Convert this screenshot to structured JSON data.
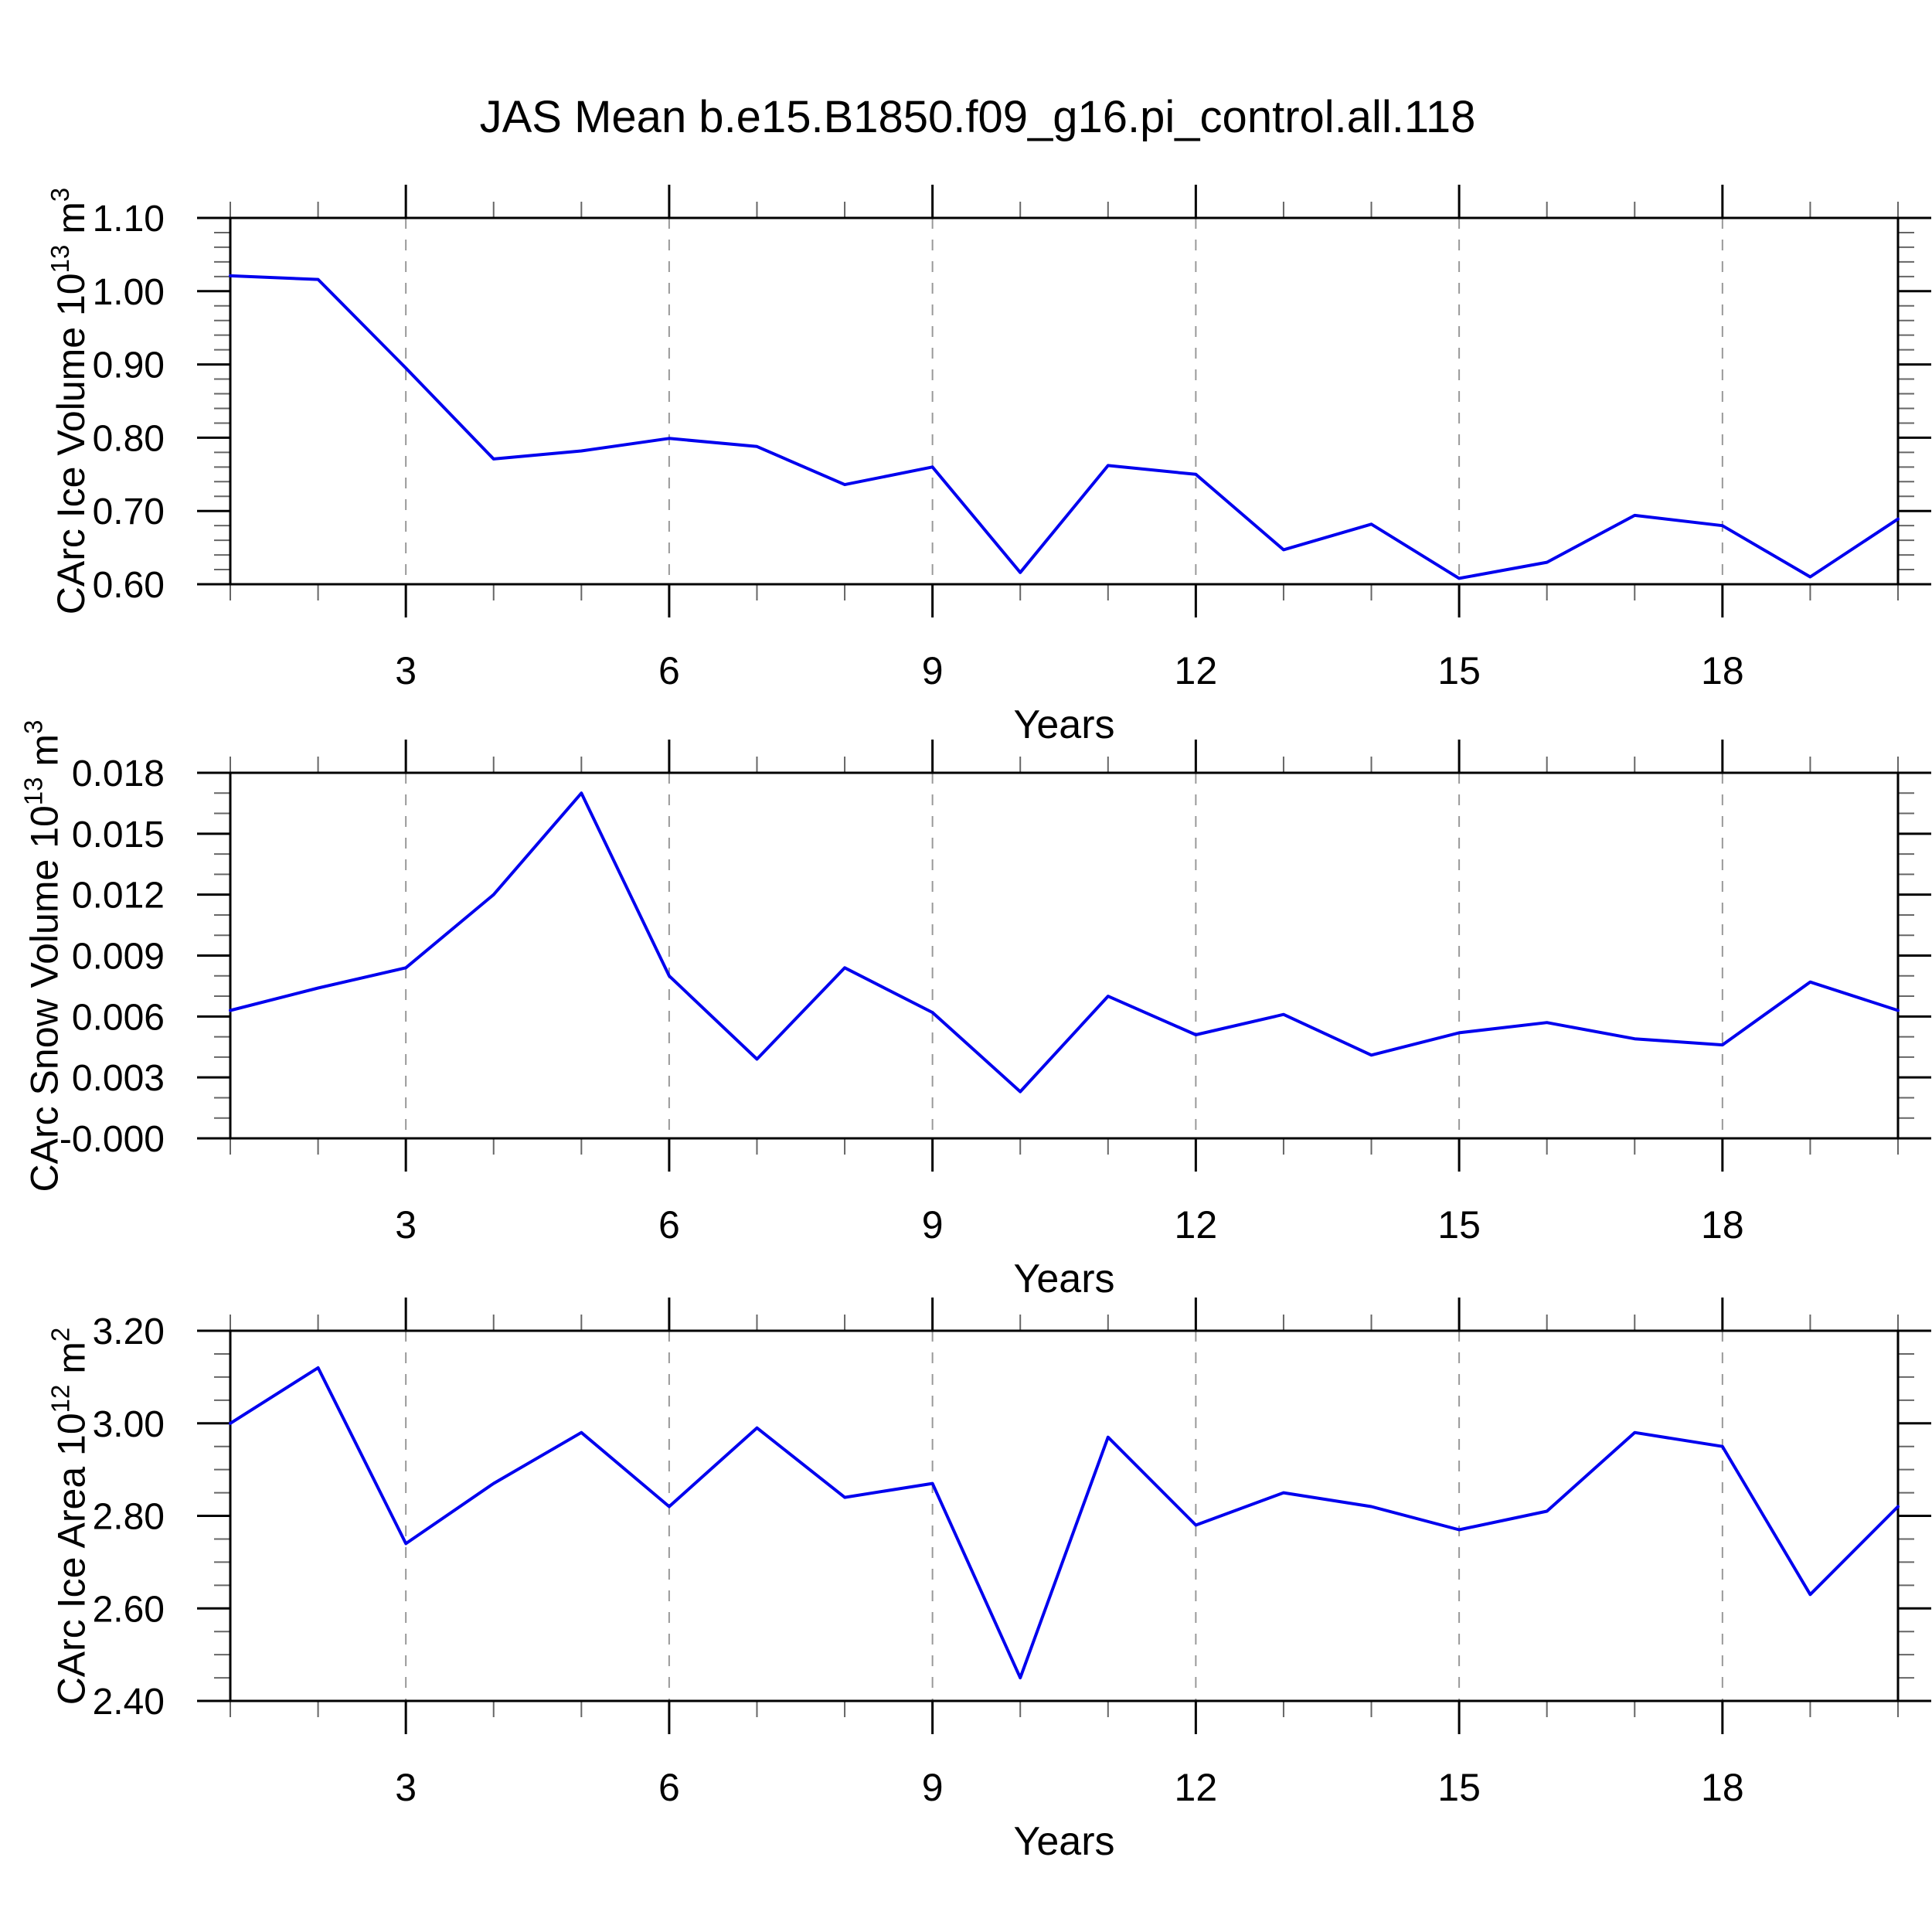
{
  "title": "JAS Mean b.e15.B1850.f09_g16.pi_control.all.118",
  "colors": {
    "line": "#0000ee",
    "axis": "#000000",
    "minor_tick": "#666666",
    "grid": "#999999",
    "background": "#ffffff"
  },
  "chart_data": {
    "type": "line",
    "title": "JAS Mean b.e15.B1850.f09_g16.pi_control.all.118",
    "x_label": "Years",
    "x": [
      1,
      2,
      3,
      4,
      5,
      6,
      7,
      8,
      9,
      10,
      11,
      12,
      13,
      14,
      15,
      16,
      17,
      18,
      19,
      20
    ],
    "x_range": [
      1,
      20
    ],
    "x_major_ticks": [
      3,
      6,
      9,
      12,
      15,
      18
    ],
    "x_minor_step": 1,
    "grid": {
      "vertical_dashed_at_major_x": true,
      "horizontal": false
    },
    "legend": "none",
    "panels": [
      {
        "id": "ice-volume",
        "y_label_text": "CArc Ice Volume 10^13 m^3",
        "y_label_parts": [
          {
            "t": "CArc Ice Volume 10"
          },
          {
            "t": "13",
            "sup": true
          },
          {
            "t": " m"
          },
          {
            "t": "3",
            "sup": true
          }
        ],
        "y_range": [
          0.6,
          1.1
        ],
        "y_major_step": 0.1,
        "y_minor_step": 0.02,
        "y_tick_decimals": 2,
        "y_tick_labels": [
          "1.10",
          "1.00",
          "0.90",
          "0.80",
          "0.70",
          "0.60"
        ],
        "values": [
          1.021,
          1.016,
          0.895,
          0.771,
          0.782,
          0.799,
          0.788,
          0.736,
          0.76,
          0.616,
          0.762,
          0.75,
          0.647,
          0.682,
          0.608,
          0.63,
          0.694,
          0.68,
          0.61,
          0.689
        ]
      },
      {
        "id": "snow-volume",
        "y_label_text": "CArc Snow Volume 10^13 m^3",
        "y_label_parts": [
          {
            "t": "CArc Snow Volume 10"
          },
          {
            "t": "13",
            "sup": true
          },
          {
            "t": " m"
          },
          {
            "t": "3",
            "sup": true
          }
        ],
        "y_range": [
          0.0,
          0.018
        ],
        "y_major_step": 0.003,
        "y_minor_step": 0.001,
        "y_tick_decimals": 3,
        "y_tick_labels": [
          "0.018",
          "0.015",
          "0.012",
          "0.009",
          "0.006",
          "0.003",
          "0.000"
        ],
        "values": [
          0.0063,
          0.0074,
          0.0084,
          0.012,
          0.017,
          0.008,
          0.0039,
          0.0084,
          0.0062,
          0.0023,
          0.007,
          0.0051,
          0.0061,
          0.0041,
          0.0052,
          0.0057,
          0.0049,
          0.0046,
          0.0077,
          0.0063
        ]
      },
      {
        "id": "ice-area",
        "y_label_text": "CArc Ice Area 10^12 m^2",
        "y_label_parts": [
          {
            "t": "CArc Ice Area 10"
          },
          {
            "t": "12",
            "sup": true
          },
          {
            "t": " m"
          },
          {
            "t": "2",
            "sup": true
          }
        ],
        "y_range": [
          2.4,
          3.2
        ],
        "y_major_step": 0.2,
        "y_minor_step": 0.05,
        "y_tick_decimals": 2,
        "y_tick_labels": [
          "3.20",
          "3.00",
          "2.80",
          "2.60",
          "2.40"
        ],
        "values": [
          3.0,
          3.12,
          2.74,
          2.87,
          2.98,
          2.82,
          2.99,
          2.84,
          2.87,
          2.45,
          2.97,
          2.78,
          2.85,
          2.82,
          2.77,
          2.81,
          2.98,
          2.95,
          2.63,
          2.82
        ]
      }
    ]
  }
}
